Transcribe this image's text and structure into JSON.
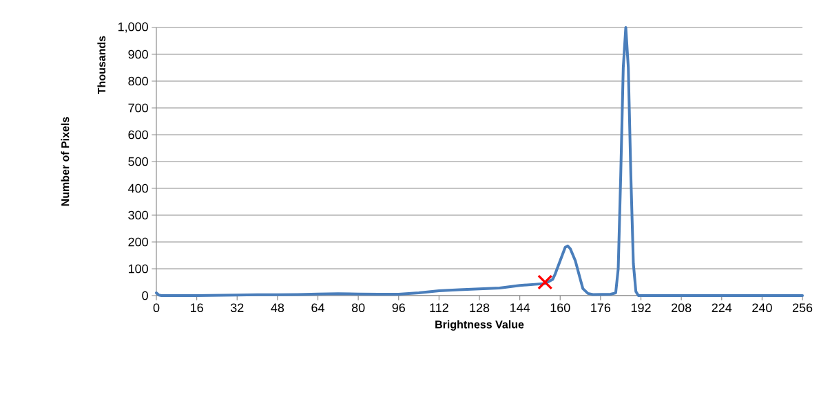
{
  "chart_data": {
    "type": "line",
    "xlabel": "Brightness Value",
    "ylabel": "Number of Pixels",
    "annotations": [
      "Thousands"
    ],
    "xlim": [
      0,
      256
    ],
    "ylim": [
      0,
      1000
    ],
    "xticks": [
      0,
      16,
      32,
      48,
      64,
      80,
      96,
      112,
      128,
      144,
      160,
      176,
      192,
      208,
      224,
      240,
      256
    ],
    "yticks": [
      0,
      100,
      200,
      300,
      400,
      500,
      600,
      700,
      800,
      900,
      {
        "value": 1000,
        "label": "1,000"
      }
    ],
    "grid": "y",
    "series": [
      {
        "color": "#4a7ebb",
        "marker": "none",
        "x": [
          0,
          1,
          2,
          16,
          32,
          40,
          48,
          56,
          64,
          72,
          80,
          88,
          96,
          104,
          112,
          120,
          128,
          136,
          144,
          150,
          154,
          157,
          158,
          160,
          162,
          163,
          164,
          166,
          168,
          169,
          171,
          173,
          180,
          182,
          183,
          184,
          185,
          186,
          187,
          188,
          189,
          190,
          191,
          192,
          200,
          224,
          256
        ],
        "values": [
          10,
          2,
          0,
          0,
          2,
          3,
          3,
          4,
          6,
          7,
          6,
          5,
          5,
          10,
          18,
          22,
          25,
          28,
          38,
          42,
          45,
          60,
          80,
          130,
          180,
          185,
          175,
          130,
          60,
          26,
          8,
          4,
          5,
          10,
          100,
          450,
          850,
          1000,
          850,
          450,
          120,
          15,
          0,
          0,
          0,
          0,
          0
        ]
      },
      {
        "type": "scatter",
        "color": "#ff0000",
        "marker": "cross",
        "x": [
          154
        ],
        "values": [
          50
        ]
      }
    ]
  }
}
